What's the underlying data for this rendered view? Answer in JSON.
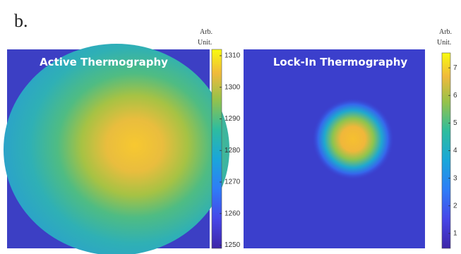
{
  "label": "b.",
  "panels": [
    {
      "title": "Active Thermography",
      "colorbar": {
        "unit": [
          "Arb.",
          "Unit."
        ],
        "lim": [
          1249,
          1312
        ],
        "ticks": [
          1250,
          1260,
          1270,
          1280,
          1290,
          1300,
          1310
        ]
      }
    },
    {
      "title": "Lock-In Thermography",
      "colorbar": {
        "unit": [
          "Arb.",
          "Unit."
        ],
        "lim": [
          0.46,
          7.54
        ],
        "ticks": [
          1,
          2,
          3,
          4,
          5,
          6,
          7
        ]
      }
    }
  ]
}
